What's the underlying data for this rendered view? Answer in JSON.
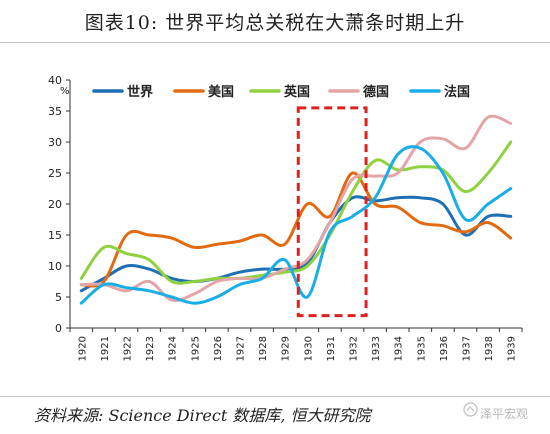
{
  "page": {
    "title": "图表10:  世界平均总关税在大萧条时期上升",
    "source": "资料来源: Science Direct 数据库, 恒大研究院",
    "watermark": "泽平宏观"
  },
  "chart_data": {
    "type": "line",
    "unit_label": "%",
    "x": [
      1920,
      1921,
      1922,
      1923,
      1924,
      1925,
      1926,
      1927,
      1928,
      1929,
      1930,
      1931,
      1932,
      1933,
      1934,
      1935,
      1936,
      1937,
      1938,
      1939
    ],
    "ylim": [
      0,
      40
    ],
    "yticks": [
      0,
      5,
      10,
      15,
      20,
      25,
      30,
      35,
      40
    ],
    "grid": false,
    "legend_position": "top",
    "highlight_box": {
      "x_range": [
        1929.6,
        1932.6
      ],
      "y_range": [
        2,
        35.5
      ],
      "color": "#e02020"
    },
    "series": [
      {
        "name": "世界",
        "color": "#1f6fb5",
        "values": [
          6,
          8,
          10,
          9.5,
          8,
          7.5,
          8,
          9,
          9.5,
          9.5,
          10.5,
          17,
          21,
          20.5,
          21,
          21,
          20,
          15,
          18,
          18
        ]
      },
      {
        "name": "美国",
        "color": "#e26a10",
        "values": [
          7,
          7.5,
          15,
          15,
          14.5,
          13,
          13.5,
          14,
          15,
          13.5,
          20,
          18,
          25,
          20,
          19.5,
          17,
          16.5,
          15.5,
          17,
          14.5
        ]
      },
      {
        "name": "英国",
        "color": "#8fd13f",
        "values": [
          8,
          13,
          12,
          11,
          7.5,
          7.5,
          8,
          8,
          8.5,
          9,
          10,
          15,
          22,
          27,
          25.5,
          26,
          25.5,
          22,
          25,
          30
        ]
      },
      {
        "name": "德国",
        "color": "#e3a5a7",
        "values": [
          7,
          7,
          6,
          7.5,
          4.5,
          5.5,
          7.5,
          8,
          8,
          9.5,
          11,
          17,
          24,
          24.5,
          25,
          30,
          30.5,
          29,
          34,
          33
        ]
      },
      {
        "name": "法国",
        "color": "#1aaee6",
        "values": [
          4,
          7,
          6.5,
          6,
          5,
          4,
          5,
          7,
          8,
          11,
          5,
          15.5,
          18,
          21,
          28,
          29,
          25,
          17.5,
          20,
          22.5
        ]
      }
    ]
  }
}
